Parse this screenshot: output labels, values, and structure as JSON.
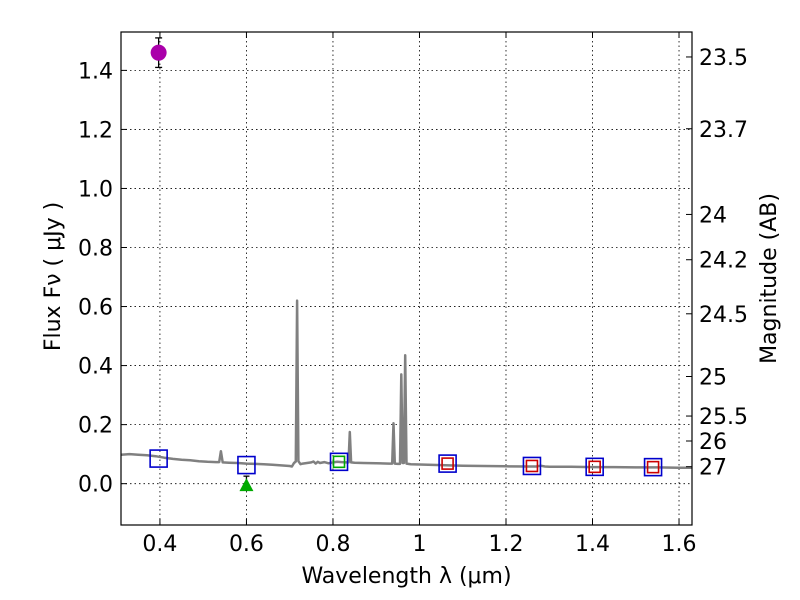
{
  "chart_data": {
    "type": "scatter",
    "xlabel": "Wavelength  λ (μm)",
    "ylabel": "Flux  Fν  ( μJy )",
    "ylabel_right": "Magnitude (AB)",
    "xlim": [
      0.31,
      1.63
    ],
    "ylim": [
      -0.14,
      1.53
    ],
    "grid": true,
    "x_ticks": [
      {
        "value": 0.4,
        "label": "0.4"
      },
      {
        "value": 0.6,
        "label": "0.6"
      },
      {
        "value": 0.8,
        "label": "0.8"
      },
      {
        "value": 1.0,
        "label": "1"
      },
      {
        "value": 1.2,
        "label": "1.2"
      },
      {
        "value": 1.4,
        "label": "1.4"
      },
      {
        "value": 1.6,
        "label": "1.6"
      }
    ],
    "y_ticks": [
      {
        "value": 0.0,
        "label": "0.0"
      },
      {
        "value": 0.2,
        "label": "0.2"
      },
      {
        "value": 0.4,
        "label": "0.4"
      },
      {
        "value": 0.6,
        "label": "0.6"
      },
      {
        "value": 0.8,
        "label": "0.8"
      },
      {
        "value": 1.0,
        "label": "1.0"
      },
      {
        "value": 1.2,
        "label": "1.2"
      },
      {
        "value": 1.4,
        "label": "1.4"
      }
    ],
    "right_ticks": [
      {
        "mag": 23.5,
        "label": "23.5"
      },
      {
        "mag": 23.7,
        "label": "23.7"
      },
      {
        "mag": 24.0,
        "label": "24"
      },
      {
        "mag": 24.2,
        "label": "24.2"
      },
      {
        "mag": 24.5,
        "label": "24.5"
      },
      {
        "mag": 25.0,
        "label": "25"
      },
      {
        "mag": 25.5,
        "label": "25.5"
      },
      {
        "mag": 26.0,
        "label": "26"
      },
      {
        "mag": 27.0,
        "label": "27"
      }
    ],
    "series": [
      {
        "name": "model spectrum",
        "kind": "line",
        "color": "#808080",
        "points": [
          [
            0.31,
            0.098
          ],
          [
            0.33,
            0.1
          ],
          [
            0.35,
            0.098
          ],
          [
            0.37,
            0.096
          ],
          [
            0.39,
            0.093
          ],
          [
            0.41,
            0.088
          ],
          [
            0.43,
            0.084
          ],
          [
            0.45,
            0.081
          ],
          [
            0.47,
            0.079
          ],
          [
            0.49,
            0.076
          ],
          [
            0.51,
            0.074
          ],
          [
            0.53,
            0.073
          ],
          [
            0.537,
            0.073
          ],
          [
            0.541,
            0.11
          ],
          [
            0.545,
            0.072
          ],
          [
            0.56,
            0.071
          ],
          [
            0.58,
            0.07
          ],
          [
            0.6,
            0.068
          ],
          [
            0.62,
            0.067
          ],
          [
            0.64,
            0.066
          ],
          [
            0.66,
            0.064
          ],
          [
            0.68,
            0.062
          ],
          [
            0.7,
            0.06
          ],
          [
            0.705,
            0.058
          ],
          [
            0.71,
            0.07
          ],
          [
            0.714,
            0.075
          ],
          [
            0.717,
            0.62
          ],
          [
            0.72,
            0.076
          ],
          [
            0.725,
            0.066
          ],
          [
            0.73,
            0.068
          ],
          [
            0.74,
            0.07
          ],
          [
            0.75,
            0.072
          ],
          [
            0.755,
            0.075
          ],
          [
            0.76,
            0.068
          ],
          [
            0.765,
            0.074
          ],
          [
            0.77,
            0.07
          ],
          [
            0.78,
            0.073
          ],
          [
            0.79,
            0.069
          ],
          [
            0.8,
            0.072
          ],
          [
            0.81,
            0.074
          ],
          [
            0.82,
            0.073
          ],
          [
            0.83,
            0.072
          ],
          [
            0.836,
            0.072
          ],
          [
            0.839,
            0.175
          ],
          [
            0.842,
            0.072
          ],
          [
            0.85,
            0.071
          ],
          [
            0.87,
            0.07
          ],
          [
            0.9,
            0.069
          ],
          [
            0.93,
            0.068
          ],
          [
            0.937,
            0.068
          ],
          [
            0.94,
            0.205
          ],
          [
            0.943,
            0.068
          ],
          [
            0.95,
            0.067
          ],
          [
            0.955,
            0.067
          ],
          [
            0.958,
            0.37
          ],
          [
            0.961,
            0.07
          ],
          [
            0.964,
            0.07
          ],
          [
            0.967,
            0.435
          ],
          [
            0.97,
            0.068
          ],
          [
            0.98,
            0.066
          ],
          [
            1.0,
            0.065
          ],
          [
            1.05,
            0.063
          ],
          [
            1.1,
            0.061
          ],
          [
            1.15,
            0.06
          ],
          [
            1.2,
            0.059
          ],
          [
            1.25,
            0.058
          ],
          [
            1.27,
            0.058
          ],
          [
            1.28,
            0.061
          ],
          [
            1.29,
            0.058
          ],
          [
            1.3,
            0.057
          ],
          [
            1.35,
            0.057
          ],
          [
            1.4,
            0.056
          ],
          [
            1.45,
            0.056
          ],
          [
            1.5,
            0.055
          ],
          [
            1.55,
            0.055
          ],
          [
            1.6,
            0.054
          ],
          [
            1.63,
            0.054
          ]
        ]
      },
      {
        "name": "model photometry (blue squares)",
        "kind": "open-square",
        "color": "#0000cc",
        "points": [
          [
            0.397,
            0.085
          ],
          [
            0.6,
            0.063
          ],
          [
            0.814,
            0.074
          ],
          [
            1.065,
            0.068
          ],
          [
            1.26,
            0.06
          ],
          [
            1.405,
            0.057
          ],
          [
            1.54,
            0.056
          ]
        ]
      },
      {
        "name": "observed photometry (green square)",
        "kind": "open-square-small",
        "color": "#00aa00",
        "points": [
          [
            0.814,
            0.074
          ]
        ]
      },
      {
        "name": "observed photometry (red squares)",
        "kind": "open-square-small",
        "color": "#cc0000",
        "points": [
          [
            1.065,
            0.068
          ],
          [
            1.26,
            0.06
          ],
          [
            1.405,
            0.057
          ],
          [
            1.54,
            0.056
          ]
        ]
      },
      {
        "name": "upper limit (green triangle)",
        "kind": "triangle",
        "color": "#00aa00",
        "points": [
          [
            0.6,
            -0.005
          ]
        ]
      },
      {
        "name": "detection (magenta circle)",
        "kind": "circle",
        "color": "#aa00aa",
        "points": [
          [
            0.397,
            1.46
          ]
        ],
        "yerr": [
          0.05
        ]
      }
    ]
  }
}
